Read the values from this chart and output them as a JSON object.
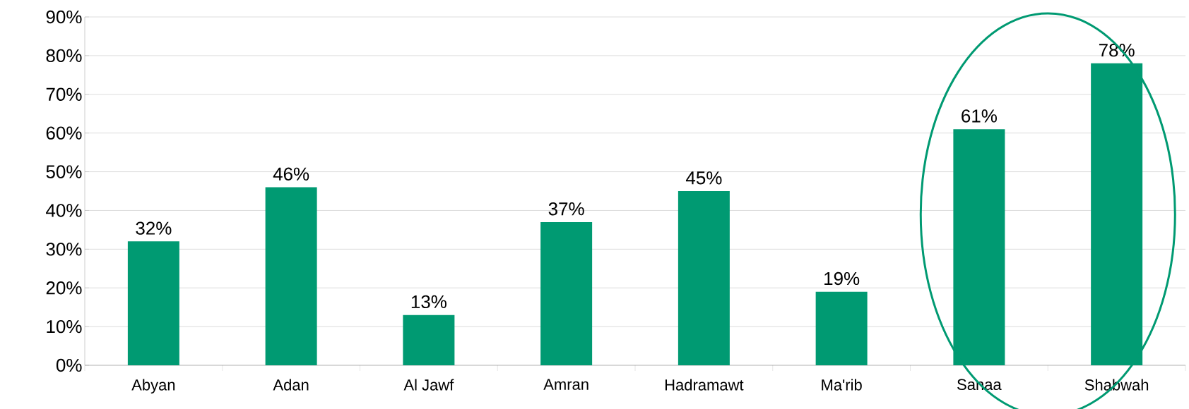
{
  "chart_data": {
    "type": "bar",
    "categories": [
      "Abyan",
      "Adan",
      "Al Jawf",
      "Amran",
      "Hadramawt",
      "Ma'rib",
      "Sanaa",
      "Shabwah"
    ],
    "values": [
      32,
      46,
      13,
      37,
      45,
      19,
      61,
      78
    ],
    "value_labels": [
      "32%",
      "46%",
      "13%",
      "37%",
      "45%",
      "19%",
      "61%",
      "78%"
    ],
    "color": "#009a72",
    "ylim": [
      0,
      90
    ],
    "yticks": [
      {
        "value": 0,
        "label": "0%"
      },
      {
        "value": 10,
        "label": "10%"
      },
      {
        "value": 20,
        "label": "20%"
      },
      {
        "value": 30,
        "label": "30%"
      },
      {
        "value": 40,
        "label": "40%"
      },
      {
        "value": 50,
        "label": "50%"
      },
      {
        "value": 60,
        "label": "60%"
      },
      {
        "value": 70,
        "label": "70%"
      },
      {
        "value": 80,
        "label": "80%"
      },
      {
        "value": 90,
        "label": "90%"
      }
    ],
    "grid": "y"
  }
}
